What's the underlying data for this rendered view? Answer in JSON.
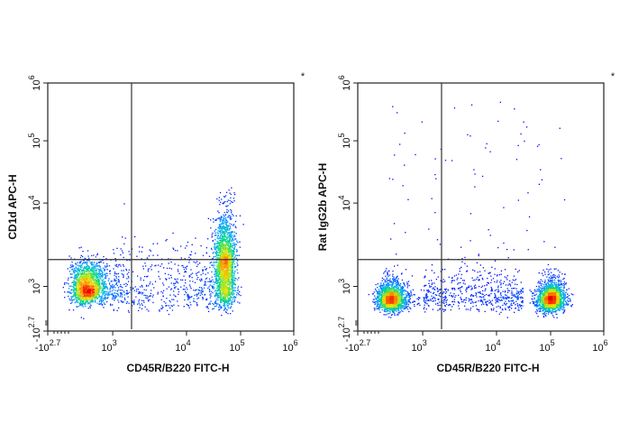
{
  "chart_data": [
    {
      "type": "scatter",
      "style": "density dot plot (blue-green-yellow-red pseudocolor)",
      "xlabel": "CD45R/B220 FITC-H",
      "ylabel": "CD1d APC-H",
      "corner_mark": "*",
      "x_ticks": [
        {
          "base": "-10",
          "exp": "2.7"
        },
        {
          "base": "10",
          "exp": "3"
        },
        {
          "base": "10",
          "exp": "4"
        },
        {
          "base": "10",
          "exp": "5"
        },
        {
          "base": "10",
          "exp": "6"
        }
      ],
      "y_ticks": [
        {
          "base": "-10",
          "exp": "2.7"
        },
        {
          "base": "10",
          "exp": "3"
        },
        {
          "base": "10",
          "exp": "4"
        },
        {
          "base": "10",
          "exp": "5"
        },
        {
          "base": "10",
          "exp": "6"
        }
      ],
      "xlim": [
        -501,
        1000000
      ],
      "ylim": [
        -501,
        1000000
      ],
      "scale": "biexponential",
      "quadrant_gate": {
        "x": 1800,
        "y": 2100
      },
      "populations": [
        {
          "x_center": 400,
          "y_center": 1000,
          "x_spread_decades": 0.2,
          "y_spread_decades": 0.15,
          "relative_count": 1800
        },
        {
          "x_center": 50000,
          "y_center": 1800,
          "x_spread_decades": 0.1,
          "y_spread_decades": 0.3,
          "relative_count": 2000
        },
        {
          "x_range": [
            1000,
            30000
          ],
          "y_center": 1000,
          "y_spread_decades": 0.25,
          "relative_count": 500
        }
      ]
    },
    {
      "type": "scatter",
      "style": "density dot plot (blue-green-yellow-red pseudocolor)",
      "xlabel": "CD45R/B220 FITC-H",
      "ylabel": "Rat IgG2b APC-H",
      "corner_mark": "*",
      "x_ticks": [
        {
          "base": "-10",
          "exp": "2.7"
        },
        {
          "base": "10",
          "exp": "3"
        },
        {
          "base": "10",
          "exp": "4"
        },
        {
          "base": "10",
          "exp": "5"
        },
        {
          "base": "10",
          "exp": "6"
        }
      ],
      "y_ticks": [
        {
          "base": "-10",
          "exp": "2.7"
        },
        {
          "base": "10",
          "exp": "3"
        },
        {
          "base": "10",
          "exp": "4"
        },
        {
          "base": "10",
          "exp": "5"
        },
        {
          "base": "10",
          "exp": "6"
        }
      ],
      "xlim": [
        -501,
        1000000
      ],
      "ylim": [
        -501,
        1000000
      ],
      "scale": "biexponential",
      "quadrant_gate": {
        "x": 1800,
        "y": 2100
      },
      "populations": [
        {
          "x_center": 250,
          "y_center": 600,
          "x_spread_decades": 0.2,
          "y_spread_decades": 0.15,
          "relative_count": 1800
        },
        {
          "x_center": 100000,
          "y_center": 600,
          "x_spread_decades": 0.13,
          "y_spread_decades": 0.15,
          "relative_count": 1800
        },
        {
          "x_range": [
            1000,
            30000
          ],
          "y_center": 700,
          "y_spread_decades": 0.2,
          "relative_count": 600
        },
        {
          "x_range": [
            200,
            200000
          ],
          "y_range": [
            2100,
            500000
          ],
          "relative_count": 70
        }
      ]
    }
  ]
}
